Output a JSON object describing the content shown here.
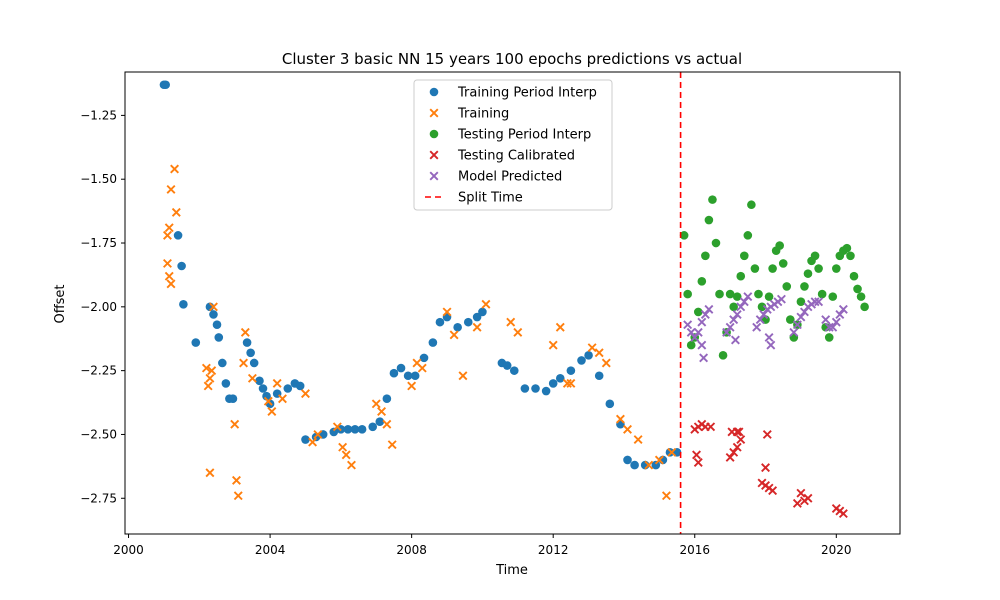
{
  "chart_data": {
    "type": "scatter",
    "title": "Cluster 3 basic NN 15 years 100 epochs predictions vs actual",
    "xlabel": "Time",
    "ylabel": "Offset",
    "xlim": [
      1999.9,
      2021.8
    ],
    "ylim": [
      -2.89,
      -1.08
    ],
    "x_ticks": [
      2000,
      2004,
      2008,
      2012,
      2016,
      2020
    ],
    "x_tick_labels": [
      "2000",
      "2004",
      "2008",
      "2012",
      "2016",
      "2020"
    ],
    "y_ticks": [
      -1.25,
      -1.5,
      -1.75,
      -2.0,
      -2.25,
      -2.5,
      -2.75
    ],
    "y_tick_labels": [
      "−1.25",
      "−1.50",
      "−1.75",
      "−2.00",
      "−2.25",
      "−2.50",
      "−2.75"
    ],
    "grid": false,
    "legend_position": "top-center",
    "split_time": 2015.6,
    "series": [
      {
        "name": "Training Period Interp",
        "marker": "circle",
        "color": "#1f77b4",
        "x": [
          2001.0,
          2001.05,
          2001.4,
          2001.5,
          2001.55,
          2001.9,
          2002.3,
          2002.4,
          2002.5,
          2002.55,
          2002.65,
          2002.75,
          2002.85,
          2002.95,
          2003.35,
          2003.45,
          2003.55,
          2003.7,
          2003.8,
          2003.9,
          2004.0,
          2004.2,
          2004.5,
          2004.7,
          2004.85,
          2005.0,
          2005.3,
          2005.5,
          2005.8,
          2006.0,
          2006.2,
          2006.4,
          2006.6,
          2006.9,
          2007.1,
          2007.3,
          2007.5,
          2007.7,
          2007.9,
          2008.1,
          2008.35,
          2008.6,
          2008.8,
          2009.0,
          2009.3,
          2009.6,
          2009.85,
          2010.0,
          2010.55,
          2010.7,
          2010.9,
          2011.2,
          2011.5,
          2011.8,
          2012.0,
          2012.2,
          2012.5,
          2012.8,
          2013.0,
          2013.3,
          2013.6,
          2013.9,
          2014.1,
          2014.3,
          2014.6,
          2014.9,
          2015.1,
          2015.3,
          2015.5
        ],
        "y": [
          -1.13,
          -1.13,
          -1.72,
          -1.84,
          -1.99,
          -2.14,
          -2.0,
          -2.03,
          -2.07,
          -2.12,
          -2.22,
          -2.3,
          -2.36,
          -2.36,
          -2.14,
          -2.18,
          -2.22,
          -2.29,
          -2.32,
          -2.35,
          -2.38,
          -2.34,
          -2.32,
          -2.3,
          -2.31,
          -2.52,
          -2.51,
          -2.5,
          -2.49,
          -2.48,
          -2.48,
          -2.48,
          -2.48,
          -2.47,
          -2.45,
          -2.36,
          -2.26,
          -2.24,
          -2.27,
          -2.27,
          -2.2,
          -2.14,
          -2.06,
          -2.04,
          -2.08,
          -2.06,
          -2.04,
          -2.02,
          -2.22,
          -2.23,
          -2.25,
          -2.32,
          -2.32,
          -2.33,
          -2.3,
          -2.28,
          -2.25,
          -2.21,
          -2.19,
          -2.27,
          -2.38,
          -2.46,
          -2.6,
          -2.62,
          -2.62,
          -2.62,
          -2.6,
          -2.57,
          -2.57
        ]
      },
      {
        "name": "Training",
        "marker": "x",
        "color": "#ff7f0e",
        "x": [
          2001.1,
          2001.15,
          2001.2,
          2001.3,
          2001.35,
          2001.1,
          2001.15,
          2001.2,
          2002.2,
          2002.25,
          2002.3,
          2002.4,
          2002.3,
          2002.35,
          2003.0,
          2003.05,
          2003.1,
          2003.25,
          2003.3,
          2003.5,
          2003.95,
          2004.05,
          2004.2,
          2004.35,
          2005.0,
          2005.2,
          2005.35,
          2005.9,
          2006.05,
          2006.15,
          2006.3,
          2007.0,
          2007.15,
          2007.3,
          2007.45,
          2008.0,
          2008.15,
          2008.3,
          2009.0,
          2009.2,
          2009.45,
          2009.85,
          2010.1,
          2010.8,
          2011.0,
          2012.0,
          2012.2,
          2012.4,
          2012.5,
          2013.1,
          2013.3,
          2013.5,
          2013.9,
          2014.1,
          2014.4,
          2014.7,
          2015.0,
          2015.2,
          2015.35
        ],
        "y": [
          -1.72,
          -1.69,
          -1.54,
          -1.46,
          -1.63,
          -1.83,
          -1.88,
          -1.91,
          -2.24,
          -2.31,
          -2.65,
          -2.0,
          -2.28,
          -2.25,
          -2.46,
          -2.68,
          -2.74,
          -2.22,
          -2.1,
          -2.28,
          -2.37,
          -2.41,
          -2.3,
          -2.36,
          -2.34,
          -2.53,
          -2.5,
          -2.47,
          -2.55,
          -2.58,
          -2.62,
          -2.38,
          -2.41,
          -2.46,
          -2.54,
          -2.31,
          -2.22,
          -2.24,
          -2.02,
          -2.11,
          -2.27,
          -2.08,
          -1.99,
          -2.06,
          -2.1,
          -2.15,
          -2.08,
          -2.3,
          -2.3,
          -2.16,
          -2.18,
          -2.22,
          -2.44,
          -2.48,
          -2.52,
          -2.62,
          -2.6,
          -2.74,
          -2.57
        ]
      },
      {
        "name": "Testing Period Interp",
        "marker": "circle",
        "color": "#2ca02c",
        "x": [
          2015.7,
          2015.8,
          2015.9,
          2016.0,
          2016.1,
          2016.2,
          2016.3,
          2016.4,
          2016.5,
          2016.6,
          2016.7,
          2016.8,
          2016.9,
          2017.0,
          2017.1,
          2017.2,
          2017.3,
          2017.4,
          2017.5,
          2017.6,
          2017.7,
          2017.8,
          2017.9,
          2018.0,
          2018.1,
          2018.2,
          2018.3,
          2018.4,
          2018.5,
          2018.6,
          2018.7,
          2018.8,
          2018.9,
          2019.0,
          2019.1,
          2019.2,
          2019.3,
          2019.4,
          2019.5,
          2019.6,
          2019.7,
          2019.8,
          2019.9,
          2020.0,
          2020.1,
          2020.2,
          2020.3,
          2020.4,
          2020.5,
          2020.6,
          2020.7,
          2020.8
        ],
        "y": [
          -1.72,
          -1.95,
          -2.15,
          -2.12,
          -2.02,
          -1.9,
          -1.8,
          -1.66,
          -1.58,
          -1.75,
          -1.95,
          -2.19,
          -2.1,
          -1.95,
          -2.0,
          -1.96,
          -1.88,
          -1.8,
          -1.72,
          -1.6,
          -1.85,
          -1.95,
          -2.0,
          -2.05,
          -1.96,
          -1.85,
          -1.78,
          -1.76,
          -1.83,
          -1.92,
          -2.05,
          -2.12,
          -2.07,
          -1.98,
          -1.92,
          -1.87,
          -1.82,
          -1.8,
          -1.85,
          -1.95,
          -2.08,
          -2.12,
          -1.96,
          -1.85,
          -1.8,
          -1.78,
          -1.77,
          -1.8,
          -1.88,
          -1.93,
          -1.96,
          -2.0
        ]
      },
      {
        "name": "Testing Calibrated",
        "marker": "x",
        "color": "#d62728",
        "x": [
          2016.0,
          2016.1,
          2016.2,
          2016.3,
          2016.45,
          2016.05,
          2016.1,
          2017.0,
          2017.1,
          2017.2,
          2017.3,
          2017.05,
          2017.2,
          2017.25,
          2017.9,
          2018.0,
          2018.1,
          2018.2,
          2018.0,
          2018.05,
          2018.9,
          2019.0,
          2019.1,
          2019.2,
          2020.0,
          2020.1,
          2020.2
        ],
        "y": [
          -2.48,
          -2.47,
          -2.46,
          -2.47,
          -2.47,
          -2.58,
          -2.61,
          -2.59,
          -2.57,
          -2.55,
          -2.52,
          -2.49,
          -2.49,
          -2.49,
          -2.69,
          -2.7,
          -2.71,
          -2.72,
          -2.63,
          -2.5,
          -2.77,
          -2.73,
          -2.76,
          -2.75,
          -2.79,
          -2.8,
          -2.81
        ]
      },
      {
        "name": "Model Predicted",
        "marker": "x",
        "color": "#9467bd",
        "x": [
          2015.8,
          2015.9,
          2016.0,
          2016.1,
          2016.2,
          2016.3,
          2016.4,
          2016.2,
          2016.25,
          2016.9,
          2017.0,
          2017.1,
          2017.2,
          2017.3,
          2017.4,
          2017.5,
          2017.15,
          2017.75,
          2017.85,
          2017.95,
          2018.05,
          2018.15,
          2018.25,
          2018.35,
          2018.45,
          2018.1,
          2018.15,
          2018.8,
          2018.9,
          2019.0,
          2019.1,
          2019.2,
          2019.3,
          2019.4,
          2019.5,
          2019.7,
          2019.8,
          2019.9,
          2020.0,
          2020.1,
          2020.2
        ],
        "y": [
          -2.07,
          -2.1,
          -2.12,
          -2.1,
          -2.06,
          -2.03,
          -2.01,
          -2.15,
          -2.2,
          -2.1,
          -2.08,
          -2.05,
          -2.03,
          -2.0,
          -1.98,
          -1.96,
          -2.13,
          -2.08,
          -2.05,
          -2.03,
          -2.01,
          -2.0,
          -1.99,
          -1.98,
          -1.97,
          -2.12,
          -2.15,
          -2.1,
          -2.07,
          -2.04,
          -2.02,
          -2.0,
          -1.99,
          -1.98,
          -1.98,
          -2.05,
          -2.08,
          -2.08,
          -2.06,
          -2.03,
          -2.01
        ]
      }
    ]
  }
}
